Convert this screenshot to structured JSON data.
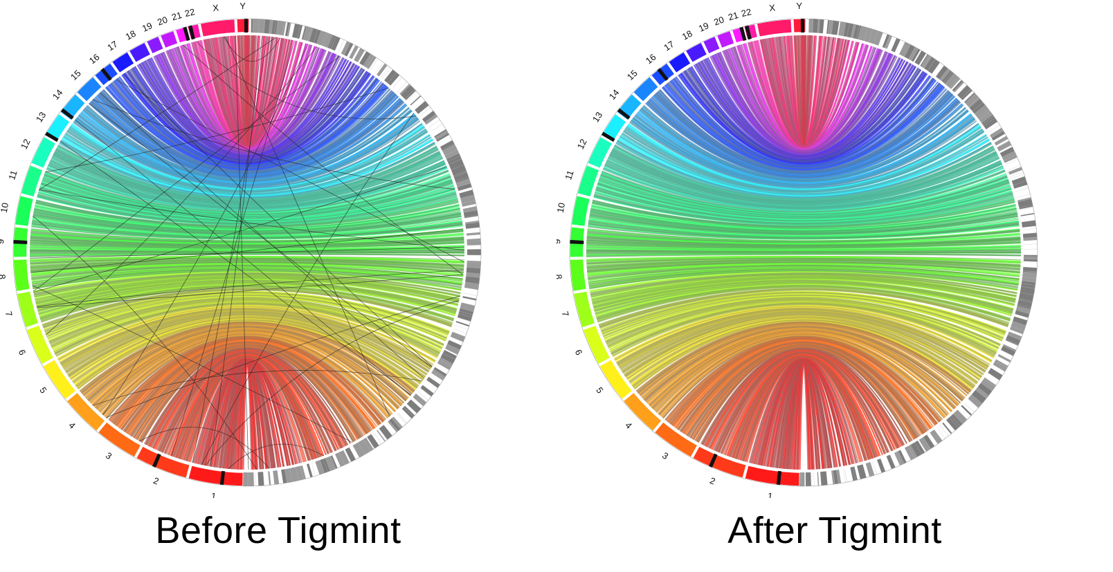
{
  "chromosomes": [
    {
      "label": "1",
      "color": "#ff1a1a",
      "size": 248,
      "marks": [
        0.35
      ]
    },
    {
      "label": "2",
      "color": "#ff3a1a",
      "size": 242,
      "marks": [
        0.6
      ]
    },
    {
      "label": "3",
      "color": "#ff6a14",
      "size": 198,
      "marks": []
    },
    {
      "label": "4",
      "color": "#ff9f1a",
      "size": 190,
      "marks": []
    },
    {
      "label": "5",
      "color": "#ffef1a",
      "size": 181,
      "marks": []
    },
    {
      "label": "6",
      "color": "#d9ff1a",
      "size": 171,
      "marks": []
    },
    {
      "label": "7",
      "color": "#9dff1a",
      "size": 159,
      "marks": []
    },
    {
      "label": "8",
      "color": "#5cff1a",
      "size": 145,
      "marks": []
    },
    {
      "label": "9",
      "color": "#33ff33",
      "size": 138,
      "marks": [
        0.45
      ]
    },
    {
      "label": "10",
      "color": "#1aff5a",
      "size": 134,
      "marks": []
    },
    {
      "label": "11",
      "color": "#1aff8c",
      "size": 135,
      "marks": []
    },
    {
      "label": "12",
      "color": "#1affbf",
      "size": 133,
      "marks": []
    },
    {
      "label": "13",
      "color": "#1af0ff",
      "size": 114,
      "marks": [
        0.0
      ]
    },
    {
      "label": "14",
      "color": "#1ab5ff",
      "size": 107,
      "marks": [
        0.05
      ]
    },
    {
      "label": "15",
      "color": "#1a85ff",
      "size": 102,
      "marks": []
    },
    {
      "label": "16",
      "color": "#1a4dff",
      "size": 90,
      "marks": [
        0.4
      ]
    },
    {
      "label": "17",
      "color": "#1a1aff",
      "size": 83,
      "marks": []
    },
    {
      "label": "18",
      "color": "#4a1aff",
      "size": 80,
      "marks": []
    },
    {
      "label": "19",
      "color": "#8c1aff",
      "size": 59,
      "marks": []
    },
    {
      "label": "20",
      "color": "#c21aff",
      "size": 64,
      "marks": []
    },
    {
      "label": "21",
      "color": "#ff1aff",
      "size": 47,
      "marks": [
        0.75
      ]
    },
    {
      "label": "22",
      "color": "#ff1aa8",
      "size": 51,
      "marks": [
        0.1
      ]
    },
    {
      "label": "X",
      "color": "#ff1a6a",
      "size": 156,
      "marks": []
    },
    {
      "label": "Y",
      "color": "#ff1a3a",
      "size": 57,
      "marks": [
        0.6
      ]
    }
  ],
  "assembly_color": "#8a8a8a",
  "panels": [
    {
      "caption": "Before Tigmint",
      "misassemblies": true
    },
    {
      "caption": "After Tigmint",
      "misassemblies": false
    }
  ]
}
